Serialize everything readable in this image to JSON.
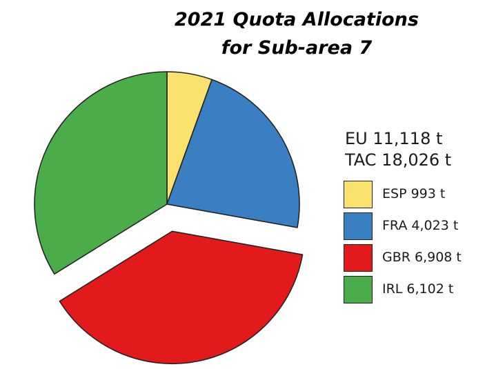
{
  "chart_data": {
    "type": "pie",
    "title_lines": [
      "2021 Quota Allocations",
      "for Sub-area 7"
    ],
    "summary": [
      "EU 11,118 t",
      "TAC 18,026 t"
    ],
    "slices": [
      {
        "label": "ESP 993 t",
        "value": 993,
        "color": "#f9e26e",
        "exploded": false
      },
      {
        "label": "FRA 4,023 t",
        "value": 4023,
        "color": "#3a7fc1",
        "exploded": false
      },
      {
        "label": "GBR 6,908 t",
        "value": 6908,
        "color": "#e31a1c",
        "exploded": true
      },
      {
        "label": "IRL 6,102 t",
        "value": 6102,
        "color": "#4aad4a",
        "exploded": false
      }
    ],
    "legend_position": "right"
  }
}
